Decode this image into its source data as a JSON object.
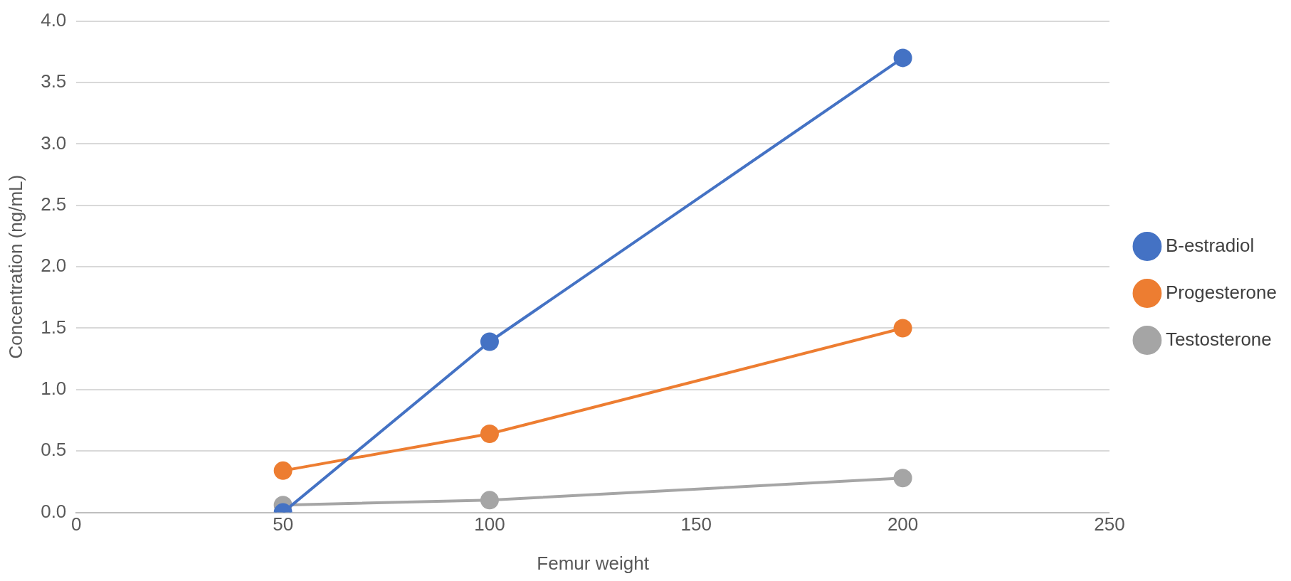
{
  "chart_data": {
    "type": "line",
    "xlabel": "Femur weight",
    "ylabel": "Concentration (ng/mL)",
    "x": [
      50,
      100,
      200
    ],
    "series": [
      {
        "name": "B-estradiol",
        "color": "#4472c4",
        "values": [
          0.0,
          1.39,
          3.7
        ]
      },
      {
        "name": "Progesterone",
        "color": "#ed7d31",
        "values": [
          0.34,
          0.64,
          1.5
        ]
      },
      {
        "name": "Testosterone",
        "color": "#a5a5a5",
        "values": [
          0.06,
          0.1,
          0.28
        ]
      }
    ],
    "xlim": [
      0,
      250
    ],
    "xticks": [
      0,
      50,
      100,
      150,
      200,
      250
    ],
    "ylim": [
      0,
      4
    ],
    "yticks": [
      {
        "value": 0,
        "label": "0.0"
      },
      {
        "value": 0.5,
        "label": "0.5"
      },
      {
        "value": 1,
        "label": "1.0"
      },
      {
        "value": 1.5,
        "label": "1.5"
      },
      {
        "value": 2,
        "label": "2.0"
      },
      {
        "value": 2.5,
        "label": "2.5"
      },
      {
        "value": 3,
        "label": "3.0"
      },
      {
        "value": 3.5,
        "label": "3.5"
      },
      {
        "value": 4,
        "label": "4.0"
      }
    ],
    "grid": "y",
    "legend": "right",
    "marker": "circle",
    "line_style": "solid"
  }
}
